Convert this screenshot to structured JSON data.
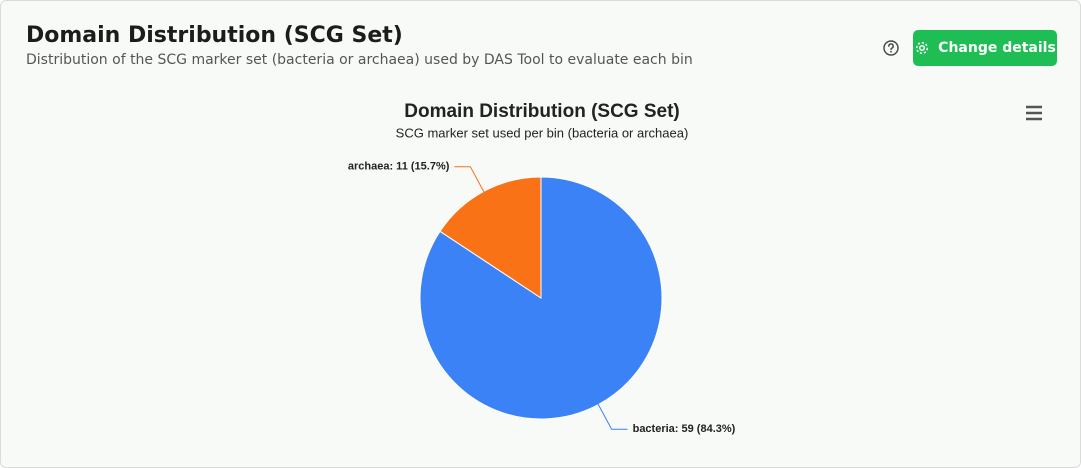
{
  "header": {
    "title": "Domain Distribution (SCG Set)",
    "subtitle": "Distribution of the SCG marker set (bacteria or archaea) used by DAS Tool to evaluate each bin",
    "button": "Change details"
  },
  "chart_data": {
    "type": "pie",
    "title": "Domain Distribution (SCG Set)",
    "subtitle": "SCG marker set used per bin (bacteria or archaea)",
    "values": [
      59,
      11
    ],
    "value_labels": [
      "bacteria: 59 (84.3%)",
      "archaea: 11 (15.7%)"
    ],
    "colors": [
      "#3b82f6",
      "#f97316"
    ]
  }
}
